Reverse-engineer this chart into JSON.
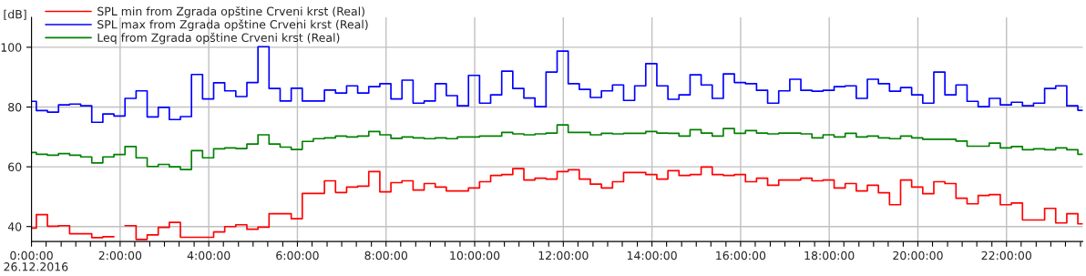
{
  "chart_data": {
    "type": "step",
    "ylabel": "[dB]",
    "annotations": [
      "26.12.2016"
    ],
    "x": [
      0,
      0.11,
      0.36,
      0.61,
      0.86,
      1.11,
      1.36,
      1.61,
      1.86,
      2.11,
      2.36,
      2.61,
      2.86,
      3.11,
      3.36,
      3.61,
      3.86,
      4.11,
      4.36,
      4.61,
      4.86,
      5.11,
      5.36,
      5.61,
      5.86,
      6.11,
      6.36,
      6.61,
      6.86,
      7.11,
      7.36,
      7.61,
      7.86,
      8.11,
      8.36,
      8.61,
      8.86,
      9.11,
      9.36,
      9.61,
      9.86,
      10.11,
      10.36,
      10.61,
      10.86,
      11.11,
      11.36,
      11.61,
      11.86,
      12.11,
      12.36,
      12.61,
      12.86,
      13.11,
      13.36,
      13.61,
      13.86,
      14.11,
      14.36,
      14.61,
      14.86,
      15.11,
      15.36,
      15.61,
      15.86,
      16.11,
      16.36,
      16.61,
      16.86,
      17.11,
      17.36,
      17.61,
      17.86,
      18.11,
      18.36,
      18.61,
      18.86,
      19.11,
      19.36,
      19.61,
      19.86,
      20.11,
      20.36,
      20.61,
      20.86,
      21.11,
      21.36,
      21.61,
      21.86,
      22.11,
      22.36,
      22.61,
      22.86,
      23.11,
      23.36,
      23.61
    ],
    "series": [
      {
        "name": "SPL min from Zgrada opštine Crveni krst (Real)",
        "color": "#ff0000",
        "values": [
          39.5,
          44.0,
          40.1,
          40.3,
          37.6,
          37.6,
          36.3,
          36.6,
          null,
          40.3,
          35.7,
          37.2,
          39.7,
          41.4,
          36.4,
          36.4,
          36.4,
          38.2,
          40.0,
          40.6,
          39.1,
          39.8,
          44.3,
          44.3,
          42.6,
          51.1,
          51.1,
          55.3,
          51.4,
          53.2,
          53.5,
          58.4,
          51.6,
          54.7,
          55.3,
          52.2,
          54.4,
          53.2,
          51.9,
          51.9,
          52.9,
          55.0,
          57.1,
          57.4,
          59.4,
          55.6,
          56.2,
          55.9,
          58.4,
          59.0,
          55.9,
          54.2,
          52.9,
          55.0,
          58.1,
          58.1,
          57.4,
          55.9,
          58.7,
          57.1,
          57.4,
          59.9,
          57.4,
          57.1,
          57.4,
          55.0,
          56.2,
          53.8,
          55.6,
          55.6,
          56.2,
          55.3,
          55.6,
          52.9,
          54.4,
          51.9,
          53.8,
          51.3,
          47.3,
          55.6,
          53.2,
          51.0,
          55.0,
          54.4,
          49.5,
          47.6,
          50.4,
          50.7,
          47.3,
          47.9,
          42.2,
          42.2,
          46.1,
          41.2,
          44.3,
          40.9
        ]
      },
      {
        "name": "SPL max from Zgrada opštine Crveni krst (Real)",
        "color": "#0000ff",
        "values": [
          81.9,
          78.8,
          78.3,
          80.7,
          81.0,
          80.4,
          74.9,
          77.7,
          77.0,
          82.9,
          85.4,
          76.7,
          79.9,
          75.8,
          76.8,
          90.9,
          82.7,
          88.1,
          85.4,
          83.5,
          88.2,
          100.2,
          86.2,
          82.0,
          86.3,
          82.0,
          82.0,
          85.7,
          84.7,
          87.1,
          84.7,
          86.8,
          87.8,
          82.7,
          89.0,
          81.3,
          82.0,
          87.8,
          83.8,
          80.4,
          90.6,
          81.3,
          84.1,
          92.0,
          86.2,
          83.0,
          80.1,
          91.7,
          98.7,
          87.8,
          85.9,
          83.2,
          85.4,
          87.4,
          82.2,
          87.1,
          94.5,
          87.1,
          82.6,
          84.1,
          90.8,
          87.4,
          82.9,
          91.1,
          88.2,
          87.8,
          85.6,
          81.3,
          85.4,
          89.3,
          85.6,
          85.3,
          85.6,
          86.8,
          87.1,
          82.9,
          89.3,
          87.8,
          85.3,
          86.5,
          84.1,
          81.3,
          91.7,
          84.1,
          87.4,
          81.9,
          80.1,
          82.9,
          80.7,
          81.6,
          80.4,
          81.3,
          86.2,
          87.1,
          80.4,
          78.9
        ]
      },
      {
        "name": "Leq from Zgrada opštine Crveni krst (Real)",
        "color": "#008000",
        "values": [
          64.8,
          64.2,
          63.9,
          64.4,
          63.9,
          63.3,
          61.3,
          63.3,
          64.1,
          66.8,
          63.0,
          60.1,
          60.8,
          60.0,
          59.1,
          65.4,
          63.0,
          66.0,
          66.3,
          66.1,
          67.6,
          70.7,
          67.6,
          66.6,
          65.8,
          68.5,
          69.4,
          69.7,
          70.3,
          70.0,
          70.3,
          71.8,
          70.7,
          69.5,
          70.0,
          69.7,
          69.4,
          69.7,
          69.4,
          70.0,
          70.0,
          70.3,
          70.3,
          71.5,
          71.0,
          70.7,
          71.0,
          71.3,
          74.0,
          71.5,
          71.5,
          70.7,
          71.2,
          71.0,
          71.2,
          71.2,
          71.8,
          71.3,
          71.2,
          70.3,
          72.4,
          71.3,
          70.3,
          72.8,
          71.2,
          72.1,
          71.3,
          71.0,
          71.3,
          71.3,
          71.0,
          69.7,
          70.7,
          70.0,
          71.2,
          70.0,
          70.3,
          69.7,
          69.4,
          70.3,
          69.7,
          69.2,
          69.2,
          69.2,
          68.6,
          66.9,
          66.9,
          67.9,
          66.3,
          66.8,
          65.7,
          66.0,
          65.7,
          66.3,
          65.7,
          64.2
        ]
      }
    ],
    "xlim": [
      0,
      23.72
    ],
    "xticks": [
      {
        "value": 0,
        "label": "0:00:00"
      },
      {
        "value": 0.33,
        "label": null
      },
      {
        "value": 0.67,
        "label": null
      },
      {
        "value": 1,
        "label": null
      },
      {
        "value": 1.33,
        "label": null
      },
      {
        "value": 1.67,
        "label": null
      },
      {
        "value": 2,
        "label": "2:00:00"
      },
      {
        "value": 2.33,
        "label": null
      },
      {
        "value": 2.67,
        "label": null
      },
      {
        "value": 3,
        "label": null
      },
      {
        "value": 3.33,
        "label": null
      },
      {
        "value": 3.67,
        "label": null
      },
      {
        "value": 4,
        "label": "4:00:00"
      },
      {
        "value": 4.33,
        "label": null
      },
      {
        "value": 4.67,
        "label": null
      },
      {
        "value": 5,
        "label": null
      },
      {
        "value": 5.33,
        "label": null
      },
      {
        "value": 5.67,
        "label": null
      },
      {
        "value": 6,
        "label": "6:00:00"
      },
      {
        "value": 6.33,
        "label": null
      },
      {
        "value": 6.67,
        "label": null
      },
      {
        "value": 7,
        "label": null
      },
      {
        "value": 7.33,
        "label": null
      },
      {
        "value": 7.67,
        "label": null
      },
      {
        "value": 8,
        "label": "8:00:00"
      },
      {
        "value": 8.33,
        "label": null
      },
      {
        "value": 8.67,
        "label": null
      },
      {
        "value": 9,
        "label": null
      },
      {
        "value": 9.33,
        "label": null
      },
      {
        "value": 9.67,
        "label": null
      },
      {
        "value": 10,
        "label": "10:00:00"
      },
      {
        "value": 10.33,
        "label": null
      },
      {
        "value": 10.67,
        "label": null
      },
      {
        "value": 11,
        "label": null
      },
      {
        "value": 11.33,
        "label": null
      },
      {
        "value": 11.67,
        "label": null
      },
      {
        "value": 12,
        "label": "12:00:00"
      },
      {
        "value": 12.33,
        "label": null
      },
      {
        "value": 12.67,
        "label": null
      },
      {
        "value": 13,
        "label": null
      },
      {
        "value": 13.33,
        "label": null
      },
      {
        "value": 13.67,
        "label": null
      },
      {
        "value": 14,
        "label": "14:00:00"
      },
      {
        "value": 14.33,
        "label": null
      },
      {
        "value": 14.67,
        "label": null
      },
      {
        "value": 15,
        "label": null
      },
      {
        "value": 15.33,
        "label": null
      },
      {
        "value": 15.67,
        "label": null
      },
      {
        "value": 16,
        "label": "16:00:00"
      },
      {
        "value": 16.33,
        "label": null
      },
      {
        "value": 16.67,
        "label": null
      },
      {
        "value": 17,
        "label": null
      },
      {
        "value": 17.33,
        "label": null
      },
      {
        "value": 17.67,
        "label": null
      },
      {
        "value": 18,
        "label": "18:00:00"
      },
      {
        "value": 18.33,
        "label": null
      },
      {
        "value": 18.67,
        "label": null
      },
      {
        "value": 19,
        "label": null
      },
      {
        "value": 19.33,
        "label": null
      },
      {
        "value": 19.67,
        "label": null
      },
      {
        "value": 20,
        "label": "20:00:00"
      },
      {
        "value": 20.33,
        "label": null
      },
      {
        "value": 20.67,
        "label": null
      },
      {
        "value": 21,
        "label": null
      },
      {
        "value": 21.33,
        "label": null
      },
      {
        "value": 21.67,
        "label": null
      },
      {
        "value": 22,
        "label": "22:00:00"
      },
      {
        "value": 22.33,
        "label": null
      },
      {
        "value": 22.67,
        "label": null
      },
      {
        "value": 23,
        "label": null
      },
      {
        "value": 23.33,
        "label": null
      },
      {
        "value": 23.67,
        "label": null
      }
    ],
    "ylim": [
      35,
      110
    ],
    "yticks": [
      40,
      60,
      80,
      100
    ],
    "grid": true,
    "legend": "top left"
  }
}
